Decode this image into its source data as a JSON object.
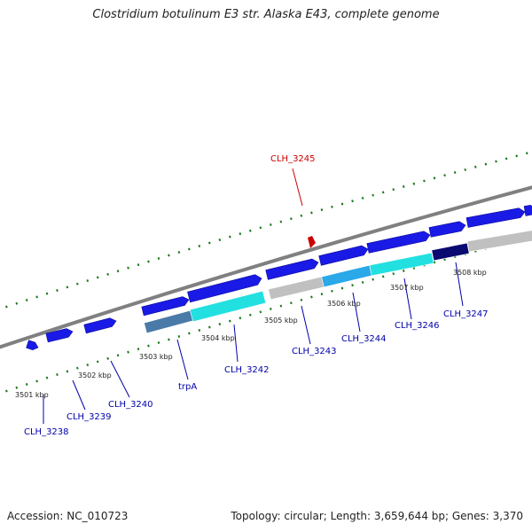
{
  "title": "Clostridium botulinum E3 str. Alaska E43, complete genome",
  "footer": {
    "accession": "Accession: NC_010723",
    "stats": "Topology: circular; Length: 3,659,644 bp; Genes: 3,370"
  },
  "colors": {
    "backbone": "#808080",
    "tick": "#1a7a1a",
    "gene_forward": "#1a1ae6",
    "label_gene": "#0000aa",
    "label_highlight": "#cc0000",
    "cds_cyan": "#22e0e0",
    "cds_steel": "#4a7aa8",
    "cds_grey": "#c0c0c0",
    "cds_navy": "#0a0a70",
    "cds_sky": "#2aa8e8"
  },
  "scale_labels": [
    "3501 kbp",
    "3502 kbp",
    "3503 kbp",
    "3504 kbp",
    "3505 kbp",
    "3506 kbp",
    "3507 kbp",
    "3508 kbp"
  ],
  "gene_labels": [
    "CLH_3238",
    "CLH_3239",
    "CLH_3240",
    "trpA",
    "CLH_3242",
    "CLH_3243",
    "CLH_3244",
    "CLH_3246",
    "CLH_3247"
  ],
  "highlight_label": "CLH_3245"
}
